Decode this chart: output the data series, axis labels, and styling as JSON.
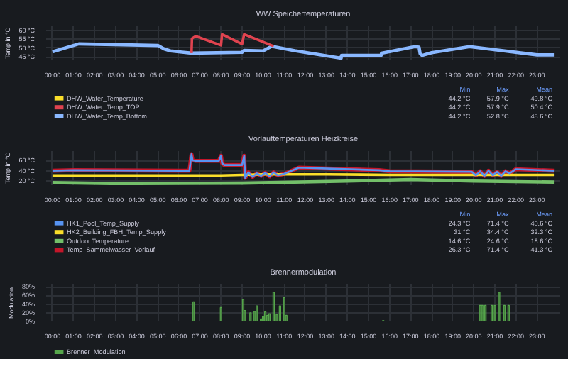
{
  "chart_data": [
    {
      "type": "line",
      "title": "WW Speichertemperaturen",
      "ylabel": "Temp in °C",
      "xlim": [
        -0.3,
        24.1
      ],
      "ylim": [
        43,
        62.5
      ],
      "xticks": [
        {
          "value": 0,
          "label": "00:00"
        },
        {
          "value": 1,
          "label": "01:00"
        },
        {
          "value": 2,
          "label": "02:00"
        },
        {
          "value": 3,
          "label": "03:00"
        },
        {
          "value": 4,
          "label": "04:00"
        },
        {
          "value": 5,
          "label": "05:00"
        },
        {
          "value": 6,
          "label": "06:00"
        },
        {
          "value": 7,
          "label": "07:00"
        },
        {
          "value": 8,
          "label": "08:00"
        },
        {
          "value": 9,
          "label": "09:00"
        },
        {
          "value": 10,
          "label": "10:00"
        },
        {
          "value": 11,
          "label": "11:00"
        },
        {
          "value": 12,
          "label": "12:00"
        },
        {
          "value": 13,
          "label": "13:00"
        },
        {
          "value": 14,
          "label": "14:00"
        },
        {
          "value": 15,
          "label": "15:00"
        },
        {
          "value": 16,
          "label": "16:00"
        },
        {
          "value": 17,
          "label": "17:00"
        },
        {
          "value": 18,
          "label": "18:00"
        },
        {
          "value": 19,
          "label": "19:00"
        },
        {
          "value": 20,
          "label": "20:00"
        },
        {
          "value": 21,
          "label": "21:00"
        },
        {
          "value": 22,
          "label": "22:00"
        },
        {
          "value": 23,
          "label": "23:00"
        }
      ],
      "yticks": [
        {
          "value": 45,
          "label": "45 °C"
        },
        {
          "value": 50,
          "label": "50 °C"
        },
        {
          "value": 55,
          "label": "55 °C"
        },
        {
          "value": 60,
          "label": "60 °C"
        }
      ],
      "grid": true,
      "legend": "bottom",
      "annotations": [
        "Min",
        "Max",
        "Mean",
        "44.2 °C",
        "57.9 °C",
        "49.8 °C",
        "44.2 °C",
        "57.9 °C",
        "50.4 °C",
        "44.2 °C",
        "52.8 °C",
        "48.6 °C"
      ],
      "series": [
        {
          "name": "DHW_Water_Temperature",
          "color": "#fade2a"
        },
        {
          "name": "DHW_Water_Temp_TOP",
          "color": "#e0434f",
          "x": [
            6.6,
            6.62,
            6.8,
            8.0,
            8.05,
            9.0,
            9.02,
            9.1,
            10.5
          ],
          "values": [
            47.1,
            55.5,
            56.8,
            51.6,
            57.9,
            52.3,
            53.5,
            57.9,
            51.1
          ]
        },
        {
          "name": "DHW_Water_Temp_Bottom",
          "color": "#8ab8ff",
          "x": [
            0,
            1.25,
            5.0,
            5.3,
            5.6,
            6.6,
            9.0,
            9.1,
            10.0,
            10.4,
            11.5,
            13.7,
            13.72,
            15.6,
            15.62,
            17.2,
            17.4,
            17.45,
            17.55,
            18.0,
            19.8,
            23.0,
            23.8
          ],
          "values": [
            47.9,
            52.4,
            51.5,
            49.5,
            48.4,
            47.1,
            47.6,
            48.7,
            48.4,
            51,
            48.5,
            44.2,
            45.8,
            45.8,
            47.1,
            50.8,
            50.5,
            46.8,
            45.8,
            47.4,
            50.8,
            46.1,
            46.1
          ]
        }
      ]
    },
    {
      "type": "line",
      "title": "Vorlauftemperaturen Heizkreise",
      "ylabel": "Temp in °C",
      "xlim": [
        -0.3,
        24.1
      ],
      "ylim": [
        12,
        78
      ],
      "xticks": [
        {
          "value": 0,
          "label": "00:00"
        },
        {
          "value": 1,
          "label": "01:00"
        },
        {
          "value": 2,
          "label": "02:00"
        },
        {
          "value": 3,
          "label": "03:00"
        },
        {
          "value": 4,
          "label": "04:00"
        },
        {
          "value": 5,
          "label": "05:00"
        },
        {
          "value": 6,
          "label": "06:00"
        },
        {
          "value": 7,
          "label": "07:00"
        },
        {
          "value": 8,
          "label": "08:00"
        },
        {
          "value": 9,
          "label": "09:00"
        },
        {
          "value": 10,
          "label": "10:00"
        },
        {
          "value": 11,
          "label": "11:00"
        },
        {
          "value": 12,
          "label": "12:00"
        },
        {
          "value": 13,
          "label": "13:00"
        },
        {
          "value": 14,
          "label": "14:00"
        },
        {
          "value": 15,
          "label": "15:00"
        },
        {
          "value": 16,
          "label": "16:00"
        },
        {
          "value": 17,
          "label": "17:00"
        },
        {
          "value": 18,
          "label": "18:00"
        },
        {
          "value": 19,
          "label": "19:00"
        },
        {
          "value": 20,
          "label": "20:00"
        },
        {
          "value": 21,
          "label": "21:00"
        },
        {
          "value": 22,
          "label": "22:00"
        },
        {
          "value": 23,
          "label": "23:00"
        }
      ],
      "yticks": [
        {
          "value": 20,
          "label": "20 °C"
        },
        {
          "value": 40,
          "label": "40 °C"
        },
        {
          "value": 60,
          "label": "60 °C"
        }
      ],
      "grid": true,
      "legend": "bottom",
      "annotations": [
        "Min",
        "Max",
        "Mean",
        "24.3 °C",
        "71.4 °C",
        "40.6 °C",
        "31 °C",
        "34.4 °C",
        "32.3 °C",
        "14.6 °C",
        "24.6 °C",
        "18.6 °C",
        "26.3 °C",
        "71.4 °C",
        "41.3 °C"
      ],
      "series": [
        {
          "name": "HK1_Pool_Temp_Supply",
          "color": "#5794f2",
          "x": [
            0,
            1,
            6.5,
            6.6,
            6.65,
            6.8,
            7.9,
            8.0,
            8.05,
            8.15,
            9.0,
            9.1,
            9.15,
            9.3,
            9.5,
            9.7,
            9.9,
            10.1,
            10.3,
            10.5,
            10.7,
            11.0,
            11.7,
            15.5,
            16.0,
            19.9,
            20.1,
            20.3,
            20.5,
            20.7,
            20.9,
            21.1,
            21.3,
            21.5,
            21.7,
            22.0,
            23.8
          ],
          "values": [
            40,
            41,
            40,
            72,
            60,
            59,
            59,
            69,
            55,
            51,
            51,
            69,
            26,
            37,
            28,
            35,
            30,
            36,
            29,
            37,
            31,
            34,
            46,
            41,
            39,
            38,
            31,
            39,
            30,
            40,
            31,
            38,
            30,
            39,
            35,
            43,
            40
          ]
        },
        {
          "name": "HK2_Building_FBH_Temp_Supply",
          "color": "#fade2a",
          "x": [
            0,
            8,
            10,
            13,
            16,
            23.8
          ],
          "values": [
            31,
            31,
            33,
            33,
            32,
            32
          ]
        },
        {
          "name": "Outdoor Temperature",
          "color": "#73bf69",
          "x": [
            0,
            3,
            9,
            14,
            17,
            20,
            23.8
          ],
          "values": [
            17,
            15,
            16,
            20,
            23,
            20,
            18
          ]
        },
        {
          "name": "Temp_Sammelwasser_Vorlauf",
          "color": "#c4162a",
          "x": [
            0,
            1,
            6.5,
            6.6,
            6.65,
            6.8,
            7.9,
            8.0,
            8.05,
            8.15,
            9.0,
            9.1,
            9.15,
            9.3,
            9.5,
            9.7,
            9.9,
            10.1,
            10.3,
            10.5,
            10.7,
            11.0,
            11.7,
            15.5,
            16.0,
            19.9,
            20.1,
            20.3,
            20.5,
            20.7,
            20.9,
            21.1,
            21.3,
            21.5,
            21.7,
            22.0,
            23.8
          ],
          "values": [
            40,
            41,
            40,
            72,
            60,
            59,
            59,
            69,
            55,
            51,
            51,
            69,
            26,
            37,
            28,
            35,
            30,
            36,
            29,
            37,
            31,
            34,
            46,
            41,
            39,
            38,
            31,
            39,
            30,
            40,
            31,
            38,
            30,
            39,
            35,
            43,
            40
          ]
        }
      ]
    },
    {
      "type": "bar",
      "title": "Brennermodulation",
      "ylabel": "Modulation",
      "xlim": [
        -0.3,
        24.1
      ],
      "ylim": [
        0,
        85
      ],
      "xticks": [
        {
          "value": 0,
          "label": "00:00"
        },
        {
          "value": 1,
          "label": "01:00"
        },
        {
          "value": 2,
          "label": "02:00"
        },
        {
          "value": 3,
          "label": "03:00"
        },
        {
          "value": 4,
          "label": "04:00"
        },
        {
          "value": 5,
          "label": "05:00"
        },
        {
          "value": 6,
          "label": "06:00"
        },
        {
          "value": 7,
          "label": "07:00"
        },
        {
          "value": 8,
          "label": "08:00"
        },
        {
          "value": 9,
          "label": "09:00"
        },
        {
          "value": 10,
          "label": "10:00"
        },
        {
          "value": 11,
          "label": "11:00"
        },
        {
          "value": 12,
          "label": "12:00"
        },
        {
          "value": 13,
          "label": "13:00"
        },
        {
          "value": 14,
          "label": "14:00"
        },
        {
          "value": 15,
          "label": "15:00"
        },
        {
          "value": 16,
          "label": "16:00"
        },
        {
          "value": 17,
          "label": "17:00"
        },
        {
          "value": 18,
          "label": "18:00"
        },
        {
          "value": 19,
          "label": "19:00"
        },
        {
          "value": 20,
          "label": "20:00"
        },
        {
          "value": 21,
          "label": "21:00"
        },
        {
          "value": 22,
          "label": "22:00"
        },
        {
          "value": 23,
          "label": "23:00"
        }
      ],
      "yticks": [
        {
          "value": 0,
          "label": "0%"
        },
        {
          "value": 20,
          "label": "20%"
        },
        {
          "value": 40,
          "label": "40%"
        },
        {
          "value": 60,
          "label": "60%"
        },
        {
          "value": 80,
          "label": "80%"
        }
      ],
      "grid": true,
      "legend": "bottom",
      "series": [
        {
          "name": "Brenner_Modulation",
          "color": "#56a64b",
          "x": [
            6.7,
            8.0,
            9.05,
            9.13,
            9.4,
            9.6,
            9.7,
            9.9,
            10.0,
            10.1,
            10.2,
            10.3,
            10.5,
            10.65,
            10.8,
            11.0,
            11.1,
            15.7,
            20.3,
            20.4,
            20.55,
            20.85,
            21.0,
            21.2,
            21.45,
            21.65
          ],
          "values": [
            45,
            32,
            51,
            25,
            20,
            23,
            36,
            6,
            12,
            22,
            14,
            18,
            67,
            16,
            36,
            55,
            14,
            2,
            37,
            37,
            37,
            37,
            37,
            67,
            37,
            37
          ]
        }
      ]
    }
  ]
}
